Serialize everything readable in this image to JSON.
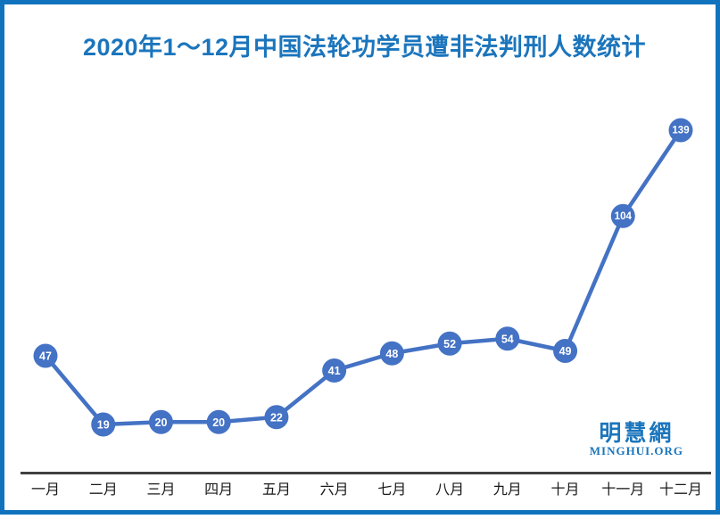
{
  "colors": {
    "frame_border": "#1173BD",
    "title_text": "#1B75BC",
    "series_line": "#4472C4",
    "marker_fill": "#4472C4",
    "marker_label": "#FFFFFF",
    "axis_line": "#404040",
    "tick_label": "#1A1A1A",
    "logo": "#1B75BC",
    "background": "#FFFFFF"
  },
  "logo": {
    "cjk": "明慧網",
    "latin": "MINGHUI.ORG"
  },
  "chart_data": {
    "type": "line",
    "title": "2020年1～12月中国法轮功学员遭非法判刑人数统计",
    "categories": [
      "一月",
      "二月",
      "三月",
      "四月",
      "五月",
      "六月",
      "七月",
      "八月",
      "九月",
      "十月",
      "十一月",
      "十二月"
    ],
    "values": [
      47,
      19,
      20,
      20,
      22,
      41,
      48,
      52,
      54,
      49,
      104,
      139
    ],
    "xlabel": "",
    "ylabel": "",
    "ylim": [
      0,
      150
    ],
    "grid": false,
    "legend": false,
    "y_axis_shown": false,
    "data_labels": "inside-markers"
  }
}
